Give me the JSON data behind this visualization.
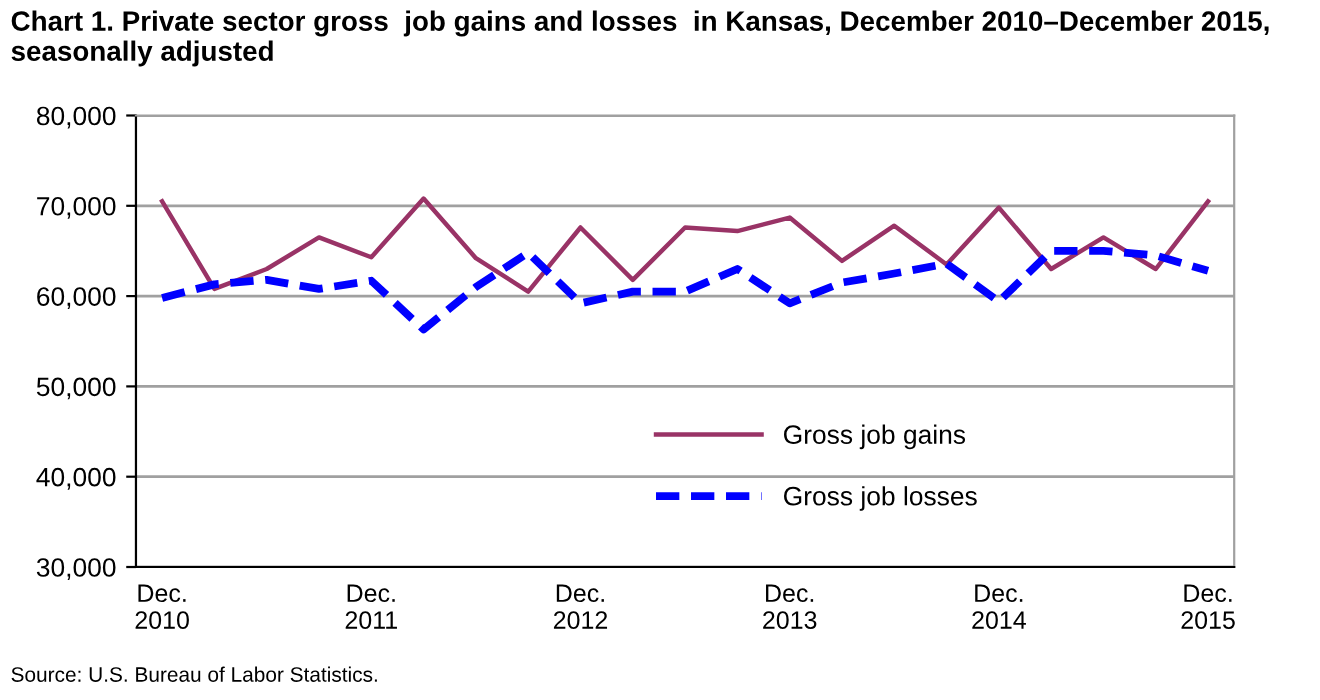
{
  "chart_data": {
    "type": "line",
    "title": "Chart 1. Private sector gross  job gains and losses  in Kansas, December 2010–December 2015, seasonally adjusted",
    "categories": [
      "Dec.\n2010",
      null,
      null,
      null,
      "Dec.\n2011",
      null,
      null,
      null,
      "Dec.\n2012",
      null,
      null,
      null,
      "Dec.\n2013",
      null,
      null,
      null,
      "Dec.\n2014",
      null,
      null,
      null,
      "Dec.\n2015"
    ],
    "series": [
      {
        "name": "Gross job gains",
        "color": "#993366",
        "line_style": "solid",
        "values": [
          70500,
          60800,
          63000,
          66500,
          64300,
          70800,
          64200,
          60500,
          67600,
          61800,
          67600,
          67200,
          68700,
          63900,
          67800,
          63500,
          69800,
          63000,
          66500,
          63000,
          70500
        ]
      },
      {
        "name": "Gross job losses",
        "color": "#0000ff",
        "line_style": "dashed",
        "values": [
          59800,
          61300,
          61800,
          60800,
          61700,
          56300,
          61000,
          64800,
          59200,
          60500,
          60500,
          63000,
          59200,
          61500,
          62500,
          63600,
          59400,
          65000,
          65000,
          64500,
          62800
        ]
      }
    ],
    "ylim": [
      30000,
      80000
    ],
    "yticks": [
      {
        "value": 30000,
        "label": "30,000"
      },
      {
        "value": 40000,
        "label": "40,000"
      },
      {
        "value": 50000,
        "label": "50,000"
      },
      {
        "value": 60000,
        "label": "60,000"
      },
      {
        "value": 70000,
        "label": "70,000"
      },
      {
        "value": 80000,
        "label": "80,000"
      }
    ],
    "grid": "y",
    "legend": "center",
    "marker": "none",
    "annotations": [
      "Source: U.S. Bureau of Labor Statistics."
    ]
  }
}
